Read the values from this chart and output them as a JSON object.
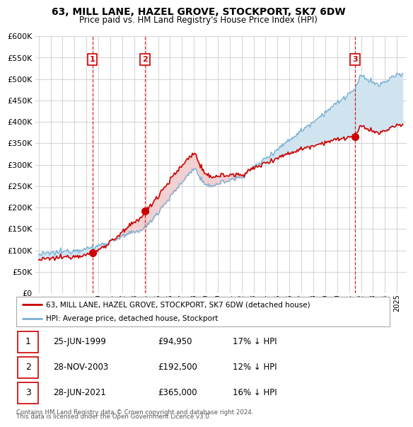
{
  "title": "63, MILL LANE, HAZEL GROVE, STOCKPORT, SK7 6DW",
  "subtitle": "Price paid vs. HM Land Registry's House Price Index (HPI)",
  "ylim": [
    0,
    600000
  ],
  "yticks": [
    0,
    50000,
    100000,
    150000,
    200000,
    250000,
    300000,
    350000,
    400000,
    450000,
    500000,
    550000,
    600000
  ],
  "hpi_line_color": "#7ab0d4",
  "hpi_fill_color": "#d0e4f0",
  "price_line_color": "#cc0000",
  "annotation_line_color": "#cc0000",
  "grid_color": "#cccccc",
  "sale_year1": 1999.5,
  "sale_year2": 2003.9,
  "sale_year3": 2021.5,
  "sale_price1": 94950,
  "sale_price2": 192500,
  "sale_price3": 365000,
  "legend_label_price": "63, MILL LANE, HAZEL GROVE, STOCKPORT, SK7 6DW (detached house)",
  "legend_label_hpi": "HPI: Average price, detached house, Stockport",
  "table": [
    {
      "num": "1",
      "date": "25-JUN-1999",
      "price": "£94,950",
      "hpi": "17% ↓ HPI"
    },
    {
      "num": "2",
      "date": "28-NOV-2003",
      "price": "£192,500",
      "hpi": "12% ↓ HPI"
    },
    {
      "num": "3",
      "date": "28-JUN-2021",
      "price": "£365,000",
      "hpi": "16% ↓ HPI"
    }
  ],
  "footer1": "Contains HM Land Registry data © Crown copyright and database right 2024.",
  "footer2": "This data is licensed under the Open Government Licence v3.0."
}
